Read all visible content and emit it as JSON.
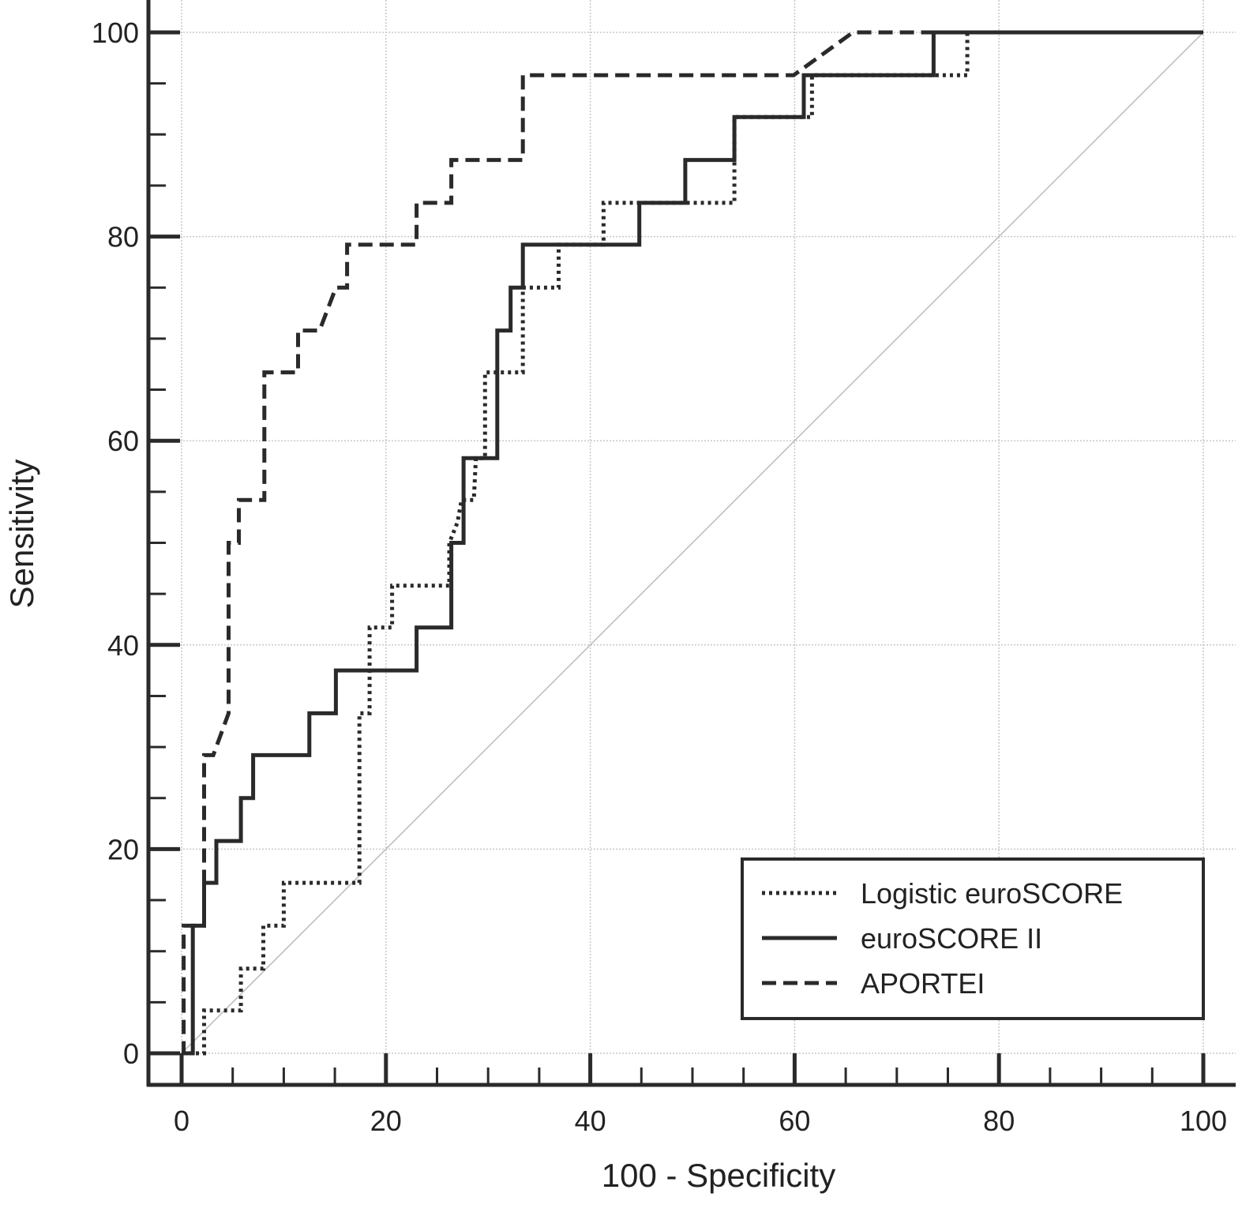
{
  "chart_data": {
    "type": "line",
    "title": "",
    "xlabel": "100 - Specificity",
    "ylabel": "Sensitivity",
    "xlim": [
      0,
      100
    ],
    "ylim": [
      0,
      100
    ],
    "xticks": [
      0,
      20,
      40,
      60,
      80,
      100
    ],
    "yticks": [
      0,
      20,
      40,
      60,
      80,
      100
    ],
    "grid": true,
    "legend_position": "bottom-right",
    "reference_line": {
      "x": [
        0,
        100
      ],
      "y": [
        0,
        100
      ],
      "color": "#bbbbbb"
    },
    "series": [
      {
        "name": "Logistic euroSCORE",
        "style": "dotted",
        "color": "#2a2a2a",
        "points": [
          [
            0,
            0
          ],
          [
            2.2,
            0
          ],
          [
            2.2,
            4.2
          ],
          [
            5.8,
            4.2
          ],
          [
            5.8,
            8.3
          ],
          [
            8.0,
            8.3
          ],
          [
            8.0,
            12.5
          ],
          [
            10.0,
            12.5
          ],
          [
            10.0,
            16.7
          ],
          [
            17.4,
            16.7
          ],
          [
            17.4,
            33.3
          ],
          [
            18.4,
            33.3
          ],
          [
            18.4,
            41.7
          ],
          [
            20.6,
            41.7
          ],
          [
            20.6,
            45.8
          ],
          [
            26.2,
            45.8
          ],
          [
            26.2,
            50
          ],
          [
            27.0,
            52
          ],
          [
            27.4,
            54.2
          ],
          [
            28.6,
            54.2
          ],
          [
            28.8,
            58.3
          ],
          [
            29.7,
            58.3
          ],
          [
            29.7,
            66.7
          ],
          [
            33.4,
            66.7
          ],
          [
            33.4,
            75
          ],
          [
            36.9,
            75
          ],
          [
            36.9,
            79.2
          ],
          [
            41.3,
            79.2
          ],
          [
            41.3,
            83.3
          ],
          [
            54.1,
            83.3
          ],
          [
            54.1,
            87.5
          ],
          [
            54.1,
            91.7
          ],
          [
            61.7,
            91.7
          ],
          [
            61.7,
            95.8
          ],
          [
            76.9,
            95.8
          ],
          [
            76.9,
            100
          ],
          [
            100,
            100
          ]
        ]
      },
      {
        "name": "euroSCORE II",
        "style": "solid",
        "color": "#2a2a2a",
        "points": [
          [
            0,
            0
          ],
          [
            1.1,
            0
          ],
          [
            1.1,
            12.5
          ],
          [
            2.2,
            12.5
          ],
          [
            2.2,
            16.7
          ],
          [
            3.4,
            16.7
          ],
          [
            3.4,
            20.8
          ],
          [
            5.8,
            20.8
          ],
          [
            5.8,
            25
          ],
          [
            7.0,
            25
          ],
          [
            7.0,
            29.2
          ],
          [
            12.5,
            29.2
          ],
          [
            12.5,
            33.3
          ],
          [
            15.1,
            33.3
          ],
          [
            15.1,
            37.5
          ],
          [
            23.0,
            37.5
          ],
          [
            23.0,
            41.7
          ],
          [
            26.4,
            41.7
          ],
          [
            26.4,
            50
          ],
          [
            27.6,
            50
          ],
          [
            27.6,
            58.3
          ],
          [
            30.9,
            58.3
          ],
          [
            30.9,
            70.8
          ],
          [
            32.2,
            70.8
          ],
          [
            32.2,
            75
          ],
          [
            33.4,
            75
          ],
          [
            33.4,
            79.2
          ],
          [
            44.8,
            79.2
          ],
          [
            44.8,
            83.3
          ],
          [
            49.3,
            83.3
          ],
          [
            49.3,
            87.5
          ],
          [
            54.1,
            87.5
          ],
          [
            54.1,
            91.7
          ],
          [
            60.9,
            91.7
          ],
          [
            60.9,
            95.8
          ],
          [
            73.6,
            95.8
          ],
          [
            73.6,
            100
          ],
          [
            100,
            100
          ]
        ]
      },
      {
        "name": "APORTEI",
        "style": "dashed",
        "color": "#2a2a2a",
        "points": [
          [
            0,
            0
          ],
          [
            0.2,
            0
          ],
          [
            0.2,
            12.5
          ],
          [
            2.2,
            12.5
          ],
          [
            2.2,
            29.2
          ],
          [
            3.1,
            29.2
          ],
          [
            4.6,
            33.3
          ],
          [
            4.6,
            50
          ],
          [
            5.6,
            50
          ],
          [
            5.6,
            54.2
          ],
          [
            8.1,
            54.2
          ],
          [
            8.1,
            66.7
          ],
          [
            11.4,
            66.7
          ],
          [
            11.4,
            70.8
          ],
          [
            13.5,
            70.8
          ],
          [
            15.1,
            75
          ],
          [
            16.2,
            75
          ],
          [
            16.2,
            79.2
          ],
          [
            23.0,
            79.2
          ],
          [
            23.0,
            83.3
          ],
          [
            26.4,
            83.3
          ],
          [
            26.4,
            87.5
          ],
          [
            33.4,
            87.5
          ],
          [
            33.4,
            95.8
          ],
          [
            59.9,
            95.8
          ],
          [
            65.7,
            100
          ],
          [
            100,
            100
          ]
        ]
      }
    ]
  }
}
